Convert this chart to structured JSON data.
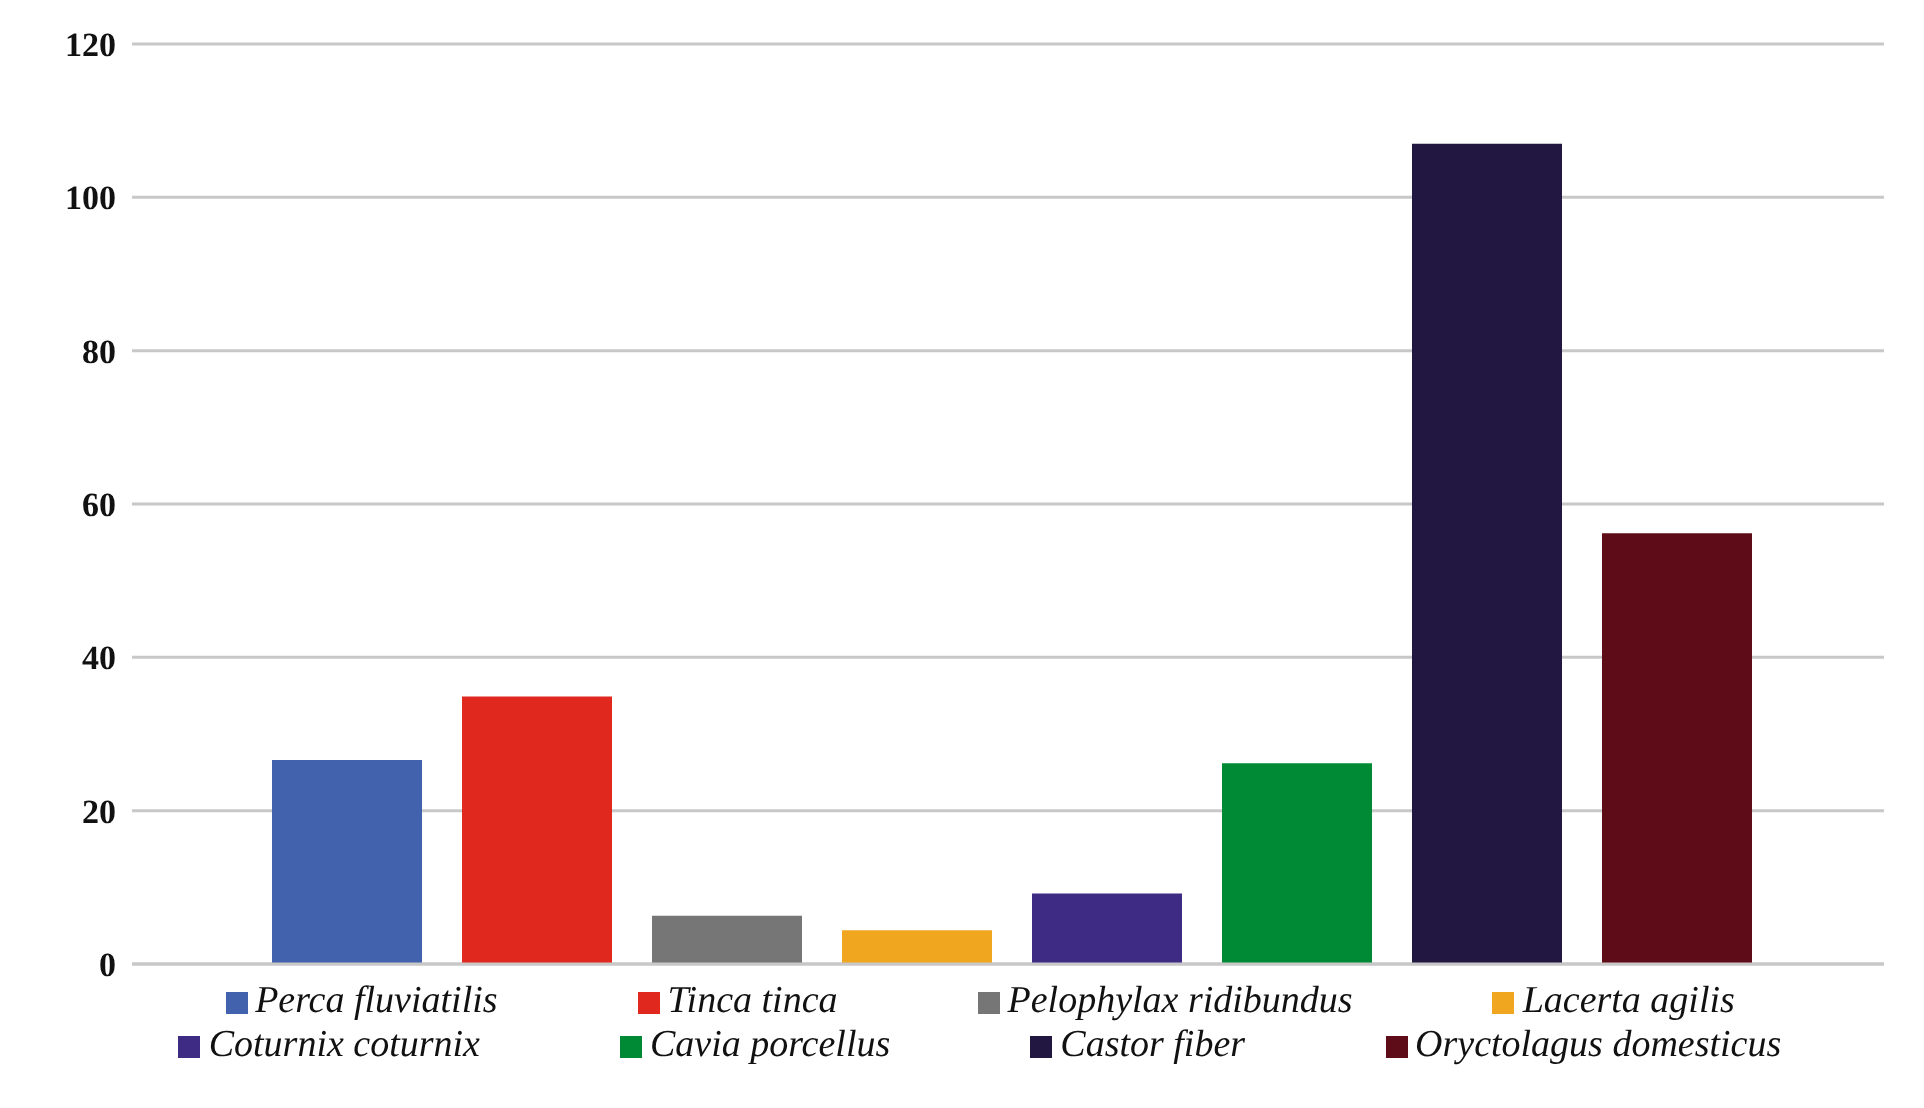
{
  "chart_data": {
    "type": "bar",
    "categories": [
      null
    ],
    "series": [
      {
        "name": "Perca fluviatilis",
        "color": "#4262ad",
        "values": [
          26.6
        ]
      },
      {
        "name": "Tinca tinca",
        "color": "#e0281f",
        "values": [
          34.9
        ]
      },
      {
        "name": "Pelophylax ridibundus",
        "color": "#767676",
        "values": [
          6.3
        ]
      },
      {
        "name": "Lacerta agilis",
        "color": "#f0a61e",
        "values": [
          4.4
        ]
      },
      {
        "name": "Coturnix coturnix",
        "color": "#3d2b84",
        "values": [
          9.2
        ]
      },
      {
        "name": "Cavia porcellus",
        "color": "#008a36",
        "values": [
          26.2
        ]
      },
      {
        "name": "Castor fiber",
        "color": "#221740",
        "values": [
          107
        ]
      },
      {
        "name": "Oryctolagus domesticus",
        "color": "#5e0c17",
        "values": [
          56.2
        ]
      }
    ],
    "ylim": [
      0,
      120
    ],
    "yticks": [
      0,
      20,
      40,
      60,
      80,
      100,
      120
    ],
    "grid": "y",
    "legend": "bottom"
  }
}
